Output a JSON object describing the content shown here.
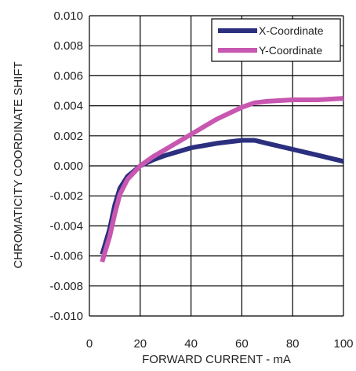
{
  "chart_data": {
    "type": "line",
    "xlabel": "FORWARD CURRENT - mA",
    "ylabel": "CHROMATICITY COORDINATE SHIFT",
    "xlim": [
      0,
      100
    ],
    "ylim": [
      -0.01,
      0.01
    ],
    "x_ticks": [
      "0",
      "20",
      "40",
      "60",
      "80",
      "100"
    ],
    "y_ticks": [
      "0.010",
      "0.008",
      "0.006",
      "0.004",
      "0.002",
      "0.000",
      "-0.002",
      "-0.004",
      "-0.006",
      "-0.008",
      "-0.010"
    ],
    "grid": true,
    "legend_position": "top-right",
    "series": [
      {
        "name": "X-Coordinate",
        "color": "#2b2f7e",
        "points": [
          [
            5,
            -0.0059
          ],
          [
            8,
            -0.0042
          ],
          [
            10,
            -0.0026
          ],
          [
            12,
            -0.0015
          ],
          [
            15,
            -0.0007
          ],
          [
            20,
            0.0
          ],
          [
            25,
            0.0004
          ],
          [
            30,
            0.0007
          ],
          [
            40,
            0.0012
          ],
          [
            50,
            0.0015
          ],
          [
            60,
            0.0017
          ],
          [
            65,
            0.0017
          ],
          [
            70,
            0.0015
          ],
          [
            80,
            0.0011
          ],
          [
            90,
            0.0007
          ],
          [
            100,
            0.0003
          ]
        ]
      },
      {
        "name": "Y-Coordinate",
        "color": "#c757b0",
        "points": [
          [
            5,
            -0.0064
          ],
          [
            8,
            -0.0047
          ],
          [
            10,
            -0.0032
          ],
          [
            12,
            -0.0019
          ],
          [
            15,
            -0.0009
          ],
          [
            20,
            0.0
          ],
          [
            25,
            0.0006
          ],
          [
            30,
            0.0011
          ],
          [
            40,
            0.0021
          ],
          [
            50,
            0.0031
          ],
          [
            60,
            0.0039
          ],
          [
            65,
            0.0042
          ],
          [
            70,
            0.0043
          ],
          [
            80,
            0.0044
          ],
          [
            90,
            0.0044
          ],
          [
            100,
            0.0045
          ]
        ]
      }
    ]
  }
}
